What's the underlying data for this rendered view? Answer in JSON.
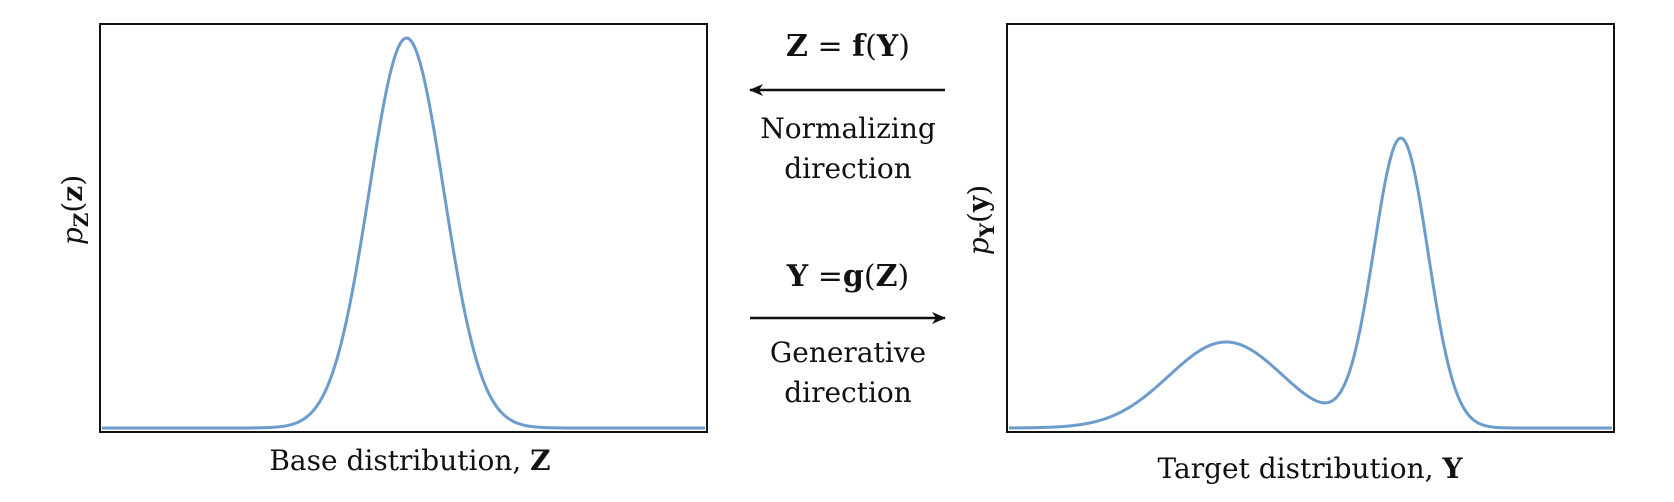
{
  "left_panel": {
    "ylabel_main": "p",
    "ylabel_sub": "Z",
    "ylabel_arg": "z",
    "xlabel_text": "Base distribution, ",
    "xlabel_var": "Z",
    "curve_color": "#6b9ccb"
  },
  "right_panel": {
    "ylabel_main": "p",
    "ylabel_sub": "Y",
    "ylabel_arg": "y",
    "xlabel_text": "Target distribution, ",
    "xlabel_var": "Y",
    "curve_color": "#6b9ccb"
  },
  "normalizing": {
    "equation_lhs": "Z",
    "equation_func": "f",
    "equation_arg": "Y",
    "label_line1": "Normalizing",
    "label_line2": "direction"
  },
  "generative": {
    "equation_lhs": "Y",
    "equation_func": "g",
    "equation_arg": "Z",
    "label_line1": "Generative",
    "label_line2": "direction"
  },
  "chart_data": [
    {
      "type": "line",
      "description_text": "Base distribution, Z",
      "shape": "single-gaussian",
      "components": [
        {
          "mean": 0.505,
          "std": 0.062,
          "weight": 1.0
        }
      ],
      "x_range": [
        0,
        1
      ]
    },
    {
      "type": "line",
      "description_text": "Target distribution, Y",
      "shape": "bimodal-gaussian-mixture",
      "components": [
        {
          "mean": 0.36,
          "std": 0.095,
          "weight": 0.22
        },
        {
          "mean": 0.65,
          "std": 0.045,
          "weight": 0.74
        }
      ],
      "x_range": [
        0,
        1
      ]
    }
  ]
}
